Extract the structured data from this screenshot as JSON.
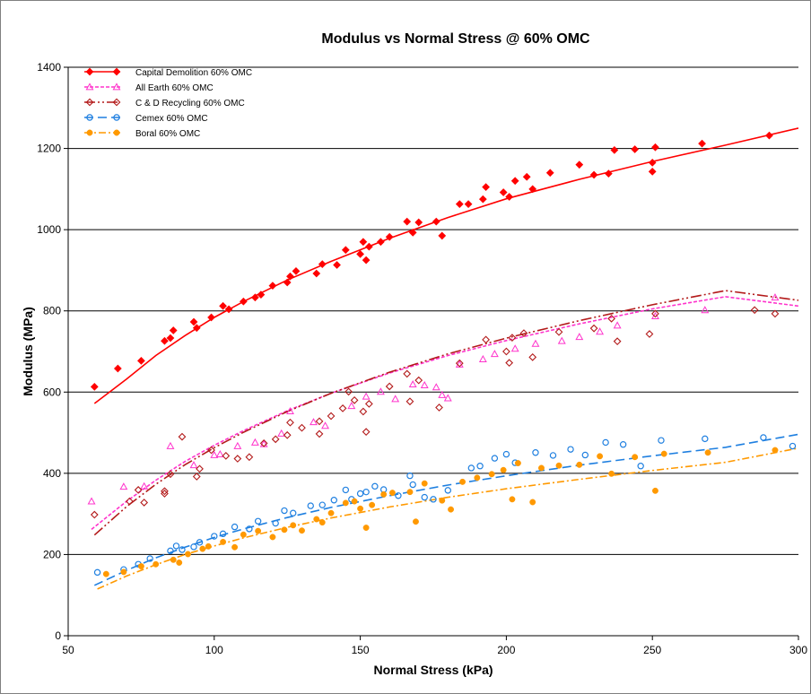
{
  "chart_data": {
    "type": "scatter",
    "title": "Modulus vs Normal Stress @ 60% OMC",
    "xlabel": "Normal Stress (kPa)",
    "ylabel": "Modulus (MPa)",
    "xlim": [
      50,
      300
    ],
    "ylim": [
      0,
      1400
    ],
    "xticks": [
      "50",
      "100",
      "150",
      "200",
      "250",
      "300"
    ],
    "yticks": [
      "0",
      "200",
      "400",
      "600",
      "800",
      "1000",
      "1200",
      "1400"
    ],
    "grid": "horizontal",
    "legend_position": "top-left",
    "series": [
      {
        "name": "Capital Demolition 60% OMC",
        "color": "#ff0000",
        "marker": "diamond-filled",
        "line": "solid",
        "trend": [
          [
            59,
            572
          ],
          [
            70,
            632
          ],
          [
            80,
            690
          ],
          [
            90,
            739
          ],
          [
            100,
            784
          ],
          [
            110,
            823
          ],
          [
            125,
            876
          ],
          [
            140,
            922
          ],
          [
            160,
            979
          ],
          [
            180,
            1030
          ],
          [
            200,
            1076
          ],
          [
            225,
            1124
          ],
          [
            250,
            1168
          ],
          [
            275,
            1208
          ],
          [
            300,
            1250
          ]
        ],
        "points": [
          [
            59,
            613
          ],
          [
            67,
            658
          ],
          [
            75,
            677
          ],
          [
            83,
            726
          ],
          [
            85,
            733
          ],
          [
            86,
            752
          ],
          [
            93,
            773
          ],
          [
            94,
            758
          ],
          [
            99,
            784
          ],
          [
            103,
            812
          ],
          [
            105,
            804
          ],
          [
            110,
            823
          ],
          [
            114,
            833
          ],
          [
            116,
            840
          ],
          [
            120,
            862
          ],
          [
            125,
            870
          ],
          [
            126,
            885
          ],
          [
            128,
            898
          ],
          [
            135,
            892
          ],
          [
            137,
            915
          ],
          [
            142,
            913
          ],
          [
            145,
            950
          ],
          [
            150,
            940
          ],
          [
            151,
            970
          ],
          [
            152,
            925
          ],
          [
            153,
            958
          ],
          [
            157,
            970
          ],
          [
            160,
            982
          ],
          [
            166,
            1020
          ],
          [
            168,
            993
          ],
          [
            170,
            1018
          ],
          [
            176,
            1020
          ],
          [
            178,
            985
          ],
          [
            184,
            1063
          ],
          [
            187,
            1063
          ],
          [
            192,
            1075
          ],
          [
            193,
            1105
          ],
          [
            199,
            1092
          ],
          [
            201,
            1081
          ],
          [
            203,
            1120
          ],
          [
            207,
            1130
          ],
          [
            209,
            1100
          ],
          [
            215,
            1140
          ],
          [
            225,
            1160
          ],
          [
            230,
            1135
          ],
          [
            235,
            1138
          ],
          [
            237,
            1196
          ],
          [
            244,
            1198
          ],
          [
            250,
            1165
          ],
          [
            250,
            1143
          ],
          [
            251,
            1203
          ],
          [
            267,
            1212
          ],
          [
            290,
            1232
          ]
        ]
      },
      {
        "name": "All Earth 60% OMC",
        "color": "#ff33cc",
        "marker": "triangle-open",
        "line": "dashed",
        "trend": [
          [
            58,
            262
          ],
          [
            70,
            331
          ],
          [
            80,
            383
          ],
          [
            90,
            429
          ],
          [
            100,
            469
          ],
          [
            110,
            505
          ],
          [
            125,
            554
          ],
          [
            140,
            597
          ],
          [
            160,
            647
          ],
          [
            180,
            690
          ],
          [
            200,
            727
          ],
          [
            225,
            768
          ],
          [
            250,
            805
          ],
          [
            275,
            835
          ],
          [
            300,
            812
          ]
        ],
        "points": [
          [
            58,
            331
          ],
          [
            69,
            367
          ],
          [
            76,
            368
          ],
          [
            85,
            467
          ],
          [
            93,
            420
          ],
          [
            100,
            445
          ],
          [
            102,
            447
          ],
          [
            108,
            467
          ],
          [
            114,
            476
          ],
          [
            117,
            472
          ],
          [
            123,
            498
          ],
          [
            126,
            553
          ],
          [
            134,
            526
          ],
          [
            138,
            517
          ],
          [
            147,
            566
          ],
          [
            152,
            589
          ],
          [
            157,
            601
          ],
          [
            162,
            583
          ],
          [
            168,
            619
          ],
          [
            172,
            617
          ],
          [
            176,
            612
          ],
          [
            178,
            593
          ],
          [
            180,
            585
          ],
          [
            184,
            668
          ],
          [
            192,
            681
          ],
          [
            196,
            694
          ],
          [
            203,
            707
          ],
          [
            210,
            719
          ],
          [
            219,
            726
          ],
          [
            225,
            736
          ],
          [
            232,
            749
          ],
          [
            238,
            764
          ],
          [
            251,
            787
          ],
          [
            268,
            802
          ],
          [
            292,
            833
          ]
        ]
      },
      {
        "name": "C & D Recycling 60% OMC",
        "color": "#b31a1a",
        "marker": "diamond-open",
        "line": "dash-dot-dot",
        "trend": [
          [
            59,
            248
          ],
          [
            70,
            318
          ],
          [
            80,
            373
          ],
          [
            90,
            421
          ],
          [
            100,
            463
          ],
          [
            110,
            501
          ],
          [
            125,
            552
          ],
          [
            140,
            597
          ],
          [
            160,
            649
          ],
          [
            180,
            694
          ],
          [
            200,
            733
          ],
          [
            225,
            776
          ],
          [
            250,
            815
          ],
          [
            275,
            850
          ],
          [
            300,
            826
          ]
        ],
        "points": [
          [
            59,
            298
          ],
          [
            71,
            331
          ],
          [
            74,
            359
          ],
          [
            76,
            328
          ],
          [
            83,
            356
          ],
          [
            83,
            350
          ],
          [
            85,
            398
          ],
          [
            89,
            490
          ],
          [
            94,
            392
          ],
          [
            95,
            411
          ],
          [
            99,
            457
          ],
          [
            104,
            443
          ],
          [
            108,
            436
          ],
          [
            112,
            440
          ],
          [
            117,
            474
          ],
          [
            121,
            484
          ],
          [
            125,
            494
          ],
          [
            126,
            525
          ],
          [
            130,
            512
          ],
          [
            136,
            497
          ],
          [
            136,
            528
          ],
          [
            140,
            541
          ],
          [
            144,
            560
          ],
          [
            146,
            601
          ],
          [
            148,
            580
          ],
          [
            151,
            552
          ],
          [
            152,
            502
          ],
          [
            153,
            571
          ],
          [
            160,
            614
          ],
          [
            166,
            645
          ],
          [
            167,
            577
          ],
          [
            170,
            629
          ],
          [
            177,
            562
          ],
          [
            184,
            671
          ],
          [
            193,
            729
          ],
          [
            200,
            700
          ],
          [
            201,
            672
          ],
          [
            202,
            734
          ],
          [
            206,
            745
          ],
          [
            209,
            686
          ],
          [
            218,
            748
          ],
          [
            230,
            757
          ],
          [
            236,
            781
          ],
          [
            238,
            725
          ],
          [
            249,
            743
          ],
          [
            251,
            793
          ],
          [
            285,
            802
          ],
          [
            292,
            793
          ]
        ]
      },
      {
        "name": "Cemex 60% OMC",
        "color": "#1e7fe0",
        "marker": "circle-open",
        "line": "long-dash",
        "trend": [
          [
            59,
            124
          ],
          [
            70,
            161
          ],
          [
            80,
            192
          ],
          [
            90,
            218
          ],
          [
            100,
            242
          ],
          [
            110,
            263
          ],
          [
            125,
            291
          ],
          [
            140,
            316
          ],
          [
            160,
            345
          ],
          [
            180,
            371
          ],
          [
            200,
            394
          ],
          [
            225,
            420
          ],
          [
            250,
            443
          ],
          [
            275,
            464
          ],
          [
            300,
            496
          ]
        ],
        "points": [
          [
            60,
            156
          ],
          [
            69,
            163
          ],
          [
            74,
            176
          ],
          [
            78,
            190
          ],
          [
            85,
            209
          ],
          [
            87,
            221
          ],
          [
            89,
            212
          ],
          [
            93,
            219
          ],
          [
            95,
            230
          ],
          [
            100,
            245
          ],
          [
            103,
            251
          ],
          [
            107,
            268
          ],
          [
            112,
            263
          ],
          [
            115,
            282
          ],
          [
            121,
            277
          ],
          [
            124,
            308
          ],
          [
            127,
            302
          ],
          [
            133,
            320
          ],
          [
            137,
            322
          ],
          [
            141,
            334
          ],
          [
            145,
            359
          ],
          [
            147,
            336
          ],
          [
            150,
            350
          ],
          [
            152,
            354
          ],
          [
            155,
            368
          ],
          [
            158,
            360
          ],
          [
            163,
            345
          ],
          [
            167,
            394
          ],
          [
            168,
            372
          ],
          [
            172,
            341
          ],
          [
            175,
            336
          ],
          [
            180,
            358
          ],
          [
            188,
            413
          ],
          [
            191,
            418
          ],
          [
            196,
            437
          ],
          [
            200,
            447
          ],
          [
            203,
            426
          ],
          [
            210,
            451
          ],
          [
            216,
            444
          ],
          [
            222,
            459
          ],
          [
            227,
            445
          ],
          [
            234,
            476
          ],
          [
            240,
            471
          ],
          [
            246,
            418
          ],
          [
            253,
            481
          ],
          [
            268,
            485
          ],
          [
            288,
            488
          ],
          [
            298,
            467
          ]
        ]
      },
      {
        "name": "Boral 60% OMC",
        "color": "#ff9900",
        "marker": "circle-filled",
        "line": "dash-dot",
        "trend": [
          [
            60,
            115
          ],
          [
            70,
            147
          ],
          [
            80,
            175
          ],
          [
            90,
            200
          ],
          [
            100,
            221
          ],
          [
            110,
            241
          ],
          [
            125,
            267
          ],
          [
            140,
            290
          ],
          [
            160,
            317
          ],
          [
            180,
            341
          ],
          [
            200,
            362
          ],
          [
            225,
            385
          ],
          [
            250,
            407
          ],
          [
            275,
            427
          ],
          [
            300,
            462
          ]
        ],
        "points": [
          [
            63,
            152
          ],
          [
            69,
            157
          ],
          [
            75,
            171
          ],
          [
            80,
            176
          ],
          [
            86,
            187
          ],
          [
            88,
            180
          ],
          [
            91,
            201
          ],
          [
            96,
            214
          ],
          [
            98,
            220
          ],
          [
            103,
            231
          ],
          [
            107,
            218
          ],
          [
            110,
            249
          ],
          [
            115,
            258
          ],
          [
            120,
            243
          ],
          [
            124,
            261
          ],
          [
            127,
            272
          ],
          [
            130,
            259
          ],
          [
            135,
            287
          ],
          [
            137,
            279
          ],
          [
            140,
            302
          ],
          [
            145,
            327
          ],
          [
            148,
            331
          ],
          [
            150,
            313
          ],
          [
            152,
            266
          ],
          [
            154,
            322
          ],
          [
            158,
            348
          ],
          [
            161,
            352
          ],
          [
            167,
            354
          ],
          [
            169,
            281
          ],
          [
            172,
            375
          ],
          [
            178,
            333
          ],
          [
            181,
            311
          ],
          [
            185,
            379
          ],
          [
            190,
            389
          ],
          [
            195,
            398
          ],
          [
            199,
            408
          ],
          [
            202,
            336
          ],
          [
            204,
            425
          ],
          [
            209,
            329
          ],
          [
            212,
            413
          ],
          [
            218,
            419
          ],
          [
            225,
            421
          ],
          [
            232,
            442
          ],
          [
            236,
            399
          ],
          [
            244,
            440
          ],
          [
            251,
            357
          ],
          [
            254,
            448
          ],
          [
            269,
            451
          ],
          [
            292,
            457
          ]
        ]
      }
    ]
  }
}
